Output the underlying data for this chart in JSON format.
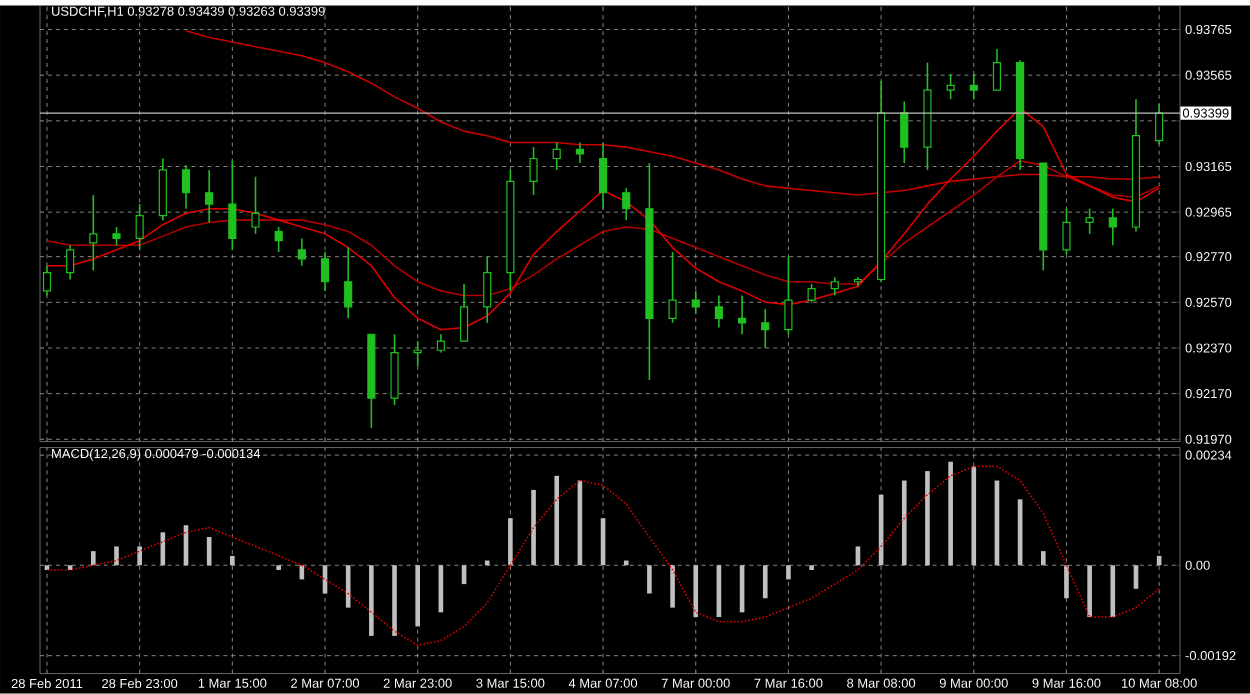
{
  "chart_data": [
    {
      "type": "candlestick",
      "title": "USDCHF,H1  0.93278 0.93439 0.93263 0.93399",
      "color": "#20c020",
      "categories": [
        null,
        null,
        null,
        null,
        null,
        null,
        null,
        null,
        null,
        null,
        null,
        null,
        null,
        null,
        null,
        null,
        null,
        null,
        null,
        null,
        null,
        null,
        null,
        null,
        null,
        null,
        null,
        null,
        null,
        null,
        null,
        null,
        null,
        null,
        null,
        null,
        null,
        null,
        null,
        null,
        null,
        null,
        null,
        null,
        null,
        null,
        null,
        null,
        null
      ],
      "ohlc": [
        [
          0.9262,
          0.9273,
          0.926,
          0.927
        ],
        [
          0.927,
          0.9282,
          0.9267,
          0.928
        ],
        [
          0.9283,
          0.9304,
          0.9271,
          0.9287
        ],
        [
          0.9287,
          0.929,
          0.9282,
          0.9285
        ],
        [
          0.9285,
          0.93,
          0.928,
          0.9295
        ],
        [
          0.9295,
          0.932,
          0.9293,
          0.9315
        ],
        [
          0.9315,
          0.9317,
          0.9298,
          0.9305
        ],
        [
          0.9305,
          0.9315,
          0.9292,
          0.93
        ],
        [
          0.93,
          0.9319,
          0.928,
          0.9285
        ],
        [
          0.929,
          0.9312,
          0.9287,
          0.9296
        ],
        [
          0.9288,
          0.929,
          0.9279,
          0.9284
        ],
        [
          0.928,
          0.9285,
          0.9273,
          0.9276
        ],
        [
          0.9276,
          0.9279,
          0.9262,
          0.9266
        ],
        [
          0.9266,
          0.9281,
          0.925,
          0.9255
        ],
        [
          0.9243,
          0.9243,
          0.9202,
          0.9215
        ],
        [
          0.9215,
          0.9243,
          0.9212,
          0.9235
        ],
        [
          0.9235,
          0.924,
          0.9229,
          0.9236
        ],
        [
          0.9236,
          0.9243,
          0.9235,
          0.924
        ],
        [
          0.924,
          0.9265,
          0.924,
          0.9255
        ],
        [
          0.9255,
          0.9277,
          0.9248,
          0.927
        ],
        [
          0.927,
          0.9315,
          0.9262,
          0.931
        ],
        [
          0.931,
          0.9325,
          0.9304,
          0.932
        ],
        [
          0.932,
          0.9327,
          0.9315,
          0.9324
        ],
        [
          0.9324,
          0.9327,
          0.9318,
          0.9322
        ],
        [
          0.932,
          0.9327,
          0.9298,
          0.9305
        ],
        [
          0.9305,
          0.9307,
          0.9293,
          0.9298
        ],
        [
          0.9298,
          0.9318,
          0.9223,
          0.925
        ],
        [
          0.925,
          0.9279,
          0.9248,
          0.9258
        ],
        [
          0.9258,
          0.9262,
          0.9252,
          0.9255
        ],
        [
          0.9255,
          0.926,
          0.9246,
          0.925
        ],
        [
          0.925,
          0.926,
          0.9243,
          0.9248
        ],
        [
          0.9248,
          0.9254,
          0.9237,
          0.9245
        ],
        [
          0.9245,
          0.9277,
          0.9243,
          0.9258
        ],
        [
          0.9258,
          0.9265,
          0.9257,
          0.9263
        ],
        [
          0.9263,
          0.9268,
          0.926,
          0.9266
        ],
        [
          0.9266,
          0.9268,
          0.9264,
          0.9267
        ],
        [
          0.9267,
          0.9354,
          0.9266,
          0.934
        ],
        [
          0.934,
          0.9345,
          0.9318,
          0.9325
        ],
        [
          0.9325,
          0.9362,
          0.9315,
          0.935
        ],
        [
          0.935,
          0.9357,
          0.9346,
          0.9352
        ],
        [
          0.9352,
          0.9357,
          0.9346,
          0.935
        ],
        [
          0.935,
          0.9368,
          0.935,
          0.9362
        ],
        [
          0.9362,
          0.9363,
          0.9315,
          0.932
        ],
        [
          0.9318,
          0.9318,
          0.9271,
          0.928
        ],
        [
          0.928,
          0.9298,
          0.9278,
          0.9292
        ],
        [
          0.9292,
          0.9298,
          0.9287,
          0.9294
        ],
        [
          0.9294,
          0.9298,
          0.9282,
          0.929
        ],
        [
          0.929,
          0.9346,
          0.9288,
          0.933
        ],
        [
          0.93278,
          0.93439,
          0.93263,
          0.93399
        ]
      ],
      "series": [
        {
          "type": "line",
          "color": "#c80000",
          "values": [
            null,
            null,
            null,
            null,
            null,
            null,
            0.9376,
            0.9373,
            0.9371,
            0.9369,
            0.9367,
            0.9365,
            0.9362,
            0.9358,
            0.9353,
            0.9347,
            0.9342,
            0.9336,
            0.9332,
            0.933,
            0.9327,
            0.9327,
            0.9327,
            0.9326,
            0.9326,
            0.9325,
            0.9323,
            0.9321,
            0.9318,
            0.9315,
            0.9311,
            0.9308,
            0.9307,
            0.9306,
            0.9305,
            0.9304,
            0.9305,
            0.9306,
            0.9308,
            0.931,
            0.9311,
            0.9312,
            0.9313,
            0.9313,
            0.9312,
            0.9312,
            0.9311,
            0.9311,
            0.9312
          ]
        },
        {
          "type": "line",
          "color": "#b00000",
          "values": [
            0.9284,
            0.9282,
            0.9282,
            0.9282,
            0.9282,
            0.9286,
            0.929,
            0.9292,
            0.9293,
            0.9293,
            0.9293,
            0.9293,
            0.9291,
            0.9288,
            0.9282,
            0.9273,
            0.9266,
            0.9262,
            0.926,
            0.926,
            0.9263,
            0.9269,
            0.9276,
            0.9282,
            0.9288,
            0.929,
            0.9289,
            0.9285,
            0.9281,
            0.9277,
            0.9273,
            0.9269,
            0.9266,
            0.9266,
            0.9265,
            0.9265,
            0.9274,
            0.9283,
            0.929,
            0.9297,
            0.9304,
            0.9312,
            0.9319,
            0.9317,
            0.9312,
            0.9308,
            0.9304,
            0.9303,
            0.9308
          ]
        },
        {
          "type": "line",
          "color": "#e00000",
          "values": [
            0.9273,
            0.9273,
            0.9276,
            0.928,
            0.9284,
            0.9291,
            0.9296,
            0.9298,
            0.9298,
            0.9296,
            0.9293,
            0.929,
            0.9287,
            0.9281,
            0.9273,
            0.9259,
            0.925,
            0.9245,
            0.9246,
            0.9251,
            0.9261,
            0.9278,
            0.9288,
            0.9297,
            0.9306,
            0.9301,
            0.9293,
            0.9281,
            0.9272,
            0.9266,
            0.9262,
            0.9257,
            0.9256,
            0.9258,
            0.9261,
            0.9264,
            0.9275,
            0.9287,
            0.93,
            0.9311,
            0.9321,
            0.9332,
            0.9342,
            0.9334,
            0.9313,
            0.9308,
            0.9303,
            0.9301,
            0.9307
          ]
        }
      ],
      "ylim": [
        0.9196,
        0.9387
      ],
      "yticks": [
        {
          "value": 0.93765,
          "label": "0.93765"
        },
        {
          "value": 0.93565,
          "label": "0.93565"
        },
        {
          "value": 0.93365,
          "label": null
        },
        {
          "value": 0.93165,
          "label": "0.93165"
        },
        {
          "value": 0.92965,
          "label": "0.92965"
        },
        {
          "value": 0.9277,
          "label": "0.92770"
        },
        {
          "value": 0.9257,
          "label": "0.92570"
        },
        {
          "value": 0.9237,
          "label": "0.92370"
        },
        {
          "value": 0.9217,
          "label": "0.92170"
        },
        {
          "value": 0.9197,
          "label": "0.91970"
        }
      ],
      "ref_lines": [
        {
          "axis": "y",
          "value": 0.93399,
          "label": "0.93399",
          "color": "#c0c0c0"
        }
      ],
      "grid": true,
      "tick_labels": "y"
    },
    {
      "type": "bar",
      "title": "MACD(12,26,9) 0.000479 -0.000134",
      "categories": [
        "28 Feb 2011",
        null,
        null,
        null,
        "28 Feb 23:00",
        null,
        null,
        null,
        "1 Mar 15:00",
        null,
        null,
        null,
        "2 Mar 07:00",
        null,
        null,
        null,
        "2 Mar 23:00",
        null,
        null,
        null,
        "3 Mar 15:00",
        null,
        null,
        null,
        "4 Mar 07:00",
        null,
        null,
        null,
        "7 Mar 00:00",
        null,
        null,
        null,
        "7 Mar 16:00",
        null,
        null,
        null,
        "8 Mar 08:00",
        null,
        null,
        null,
        "9 Mar 00:00",
        null,
        null,
        null,
        "9 Mar 16:00",
        null,
        null,
        null,
        "10 Mar 08:00"
      ],
      "series": [
        {
          "type": "bar",
          "color": "#c0c0c0",
          "values": [
            -0.0001,
            -0.0001,
            0.0003,
            0.0004,
            0.0004,
            0.0007,
            0.00085,
            0.0006,
            0.0002,
            0,
            -0.0001,
            -0.0003,
            -0.0006,
            -0.0009,
            -0.0015,
            -0.0015,
            -0.0013,
            -0.001,
            -0.0004,
            0.0001,
            0.001,
            0.0016,
            0.0019,
            0.0018,
            0.001,
            0.0001,
            -0.0006,
            -0.0009,
            -0.0011,
            -0.0011,
            -0.001,
            -0.0007,
            -0.0003,
            -0.0001,
            0,
            0.0004,
            0.0015,
            0.0018,
            0.002,
            0.0022,
            0.0021,
            0.0018,
            0.0014,
            0.0003,
            -0.0007,
            -0.0011,
            -0.0011,
            -0.0005,
            0.0002
          ]
        },
        {
          "type": "line",
          "color": "#e00000",
          "line_style": "dotted",
          "values": [
            -0.0001,
            -0.0001,
            0,
            0.0001,
            0.0003,
            0.0005,
            0.0007,
            0.0008,
            0.0006,
            0.0004,
            0.0002,
            0,
            -0.0003,
            -0.0006,
            -0.001,
            -0.0014,
            -0.0017,
            -0.0016,
            -0.0013,
            -0.0008,
            0,
            0.0008,
            0.0014,
            0.0018,
            0.0017,
            0.0013,
            0.0006,
            -0.0001,
            -0.001,
            -0.0012,
            -0.0012,
            -0.0011,
            -0.0009,
            -0.0007,
            -0.0004,
            -0.0001,
            0.0004,
            0.001,
            0.0015,
            0.0019,
            0.0021,
            0.0021,
            0.0018,
            0.0011,
            0,
            -0.0011,
            -0.0011,
            -0.0009,
            -0.0005
          ]
        }
      ],
      "ylim": [
        -0.0023,
        0.0025
      ],
      "yticks": [
        {
          "value": 0.00234,
          "label": "0.00234"
        },
        {
          "value": 0,
          "label": "0.00"
        },
        {
          "value": -0.00192,
          "label": "-0.00192"
        }
      ],
      "grid": true
    }
  ]
}
